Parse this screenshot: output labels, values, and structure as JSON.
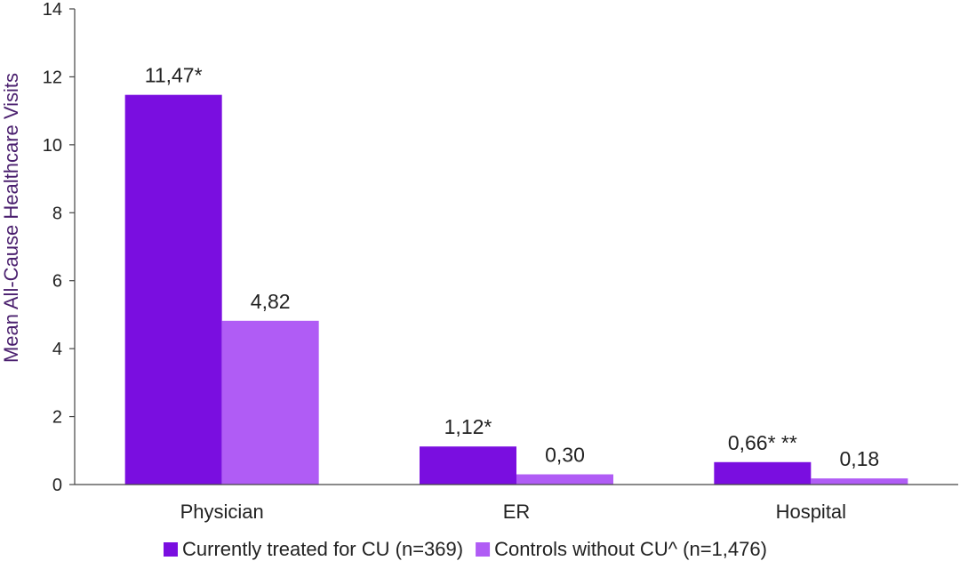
{
  "chart_data": {
    "type": "bar",
    "ylabel": "Mean All-Cause Healthcare Visits",
    "xlabel": "",
    "ylim": [
      0,
      14
    ],
    "yticks": [
      0,
      2,
      4,
      6,
      8,
      10,
      12,
      14
    ],
    "categories": [
      "Physician",
      "ER",
      "Hospital"
    ],
    "series": [
      {
        "name": "Currently treated for CU (n=369)",
        "color": "#7a0ee0",
        "values": [
          11.47,
          1.12,
          0.66
        ],
        "labels": [
          "11,47*",
          "1,12*",
          "0,66* **"
        ]
      },
      {
        "name": "Controls without CU^ (n=1,476)",
        "color": "#b05cf5",
        "values": [
          4.82,
          0.3,
          0.18
        ],
        "labels": [
          "4,82",
          "0,30",
          "0,18"
        ]
      }
    ],
    "legend_position": "bottom",
    "grid": false
  }
}
